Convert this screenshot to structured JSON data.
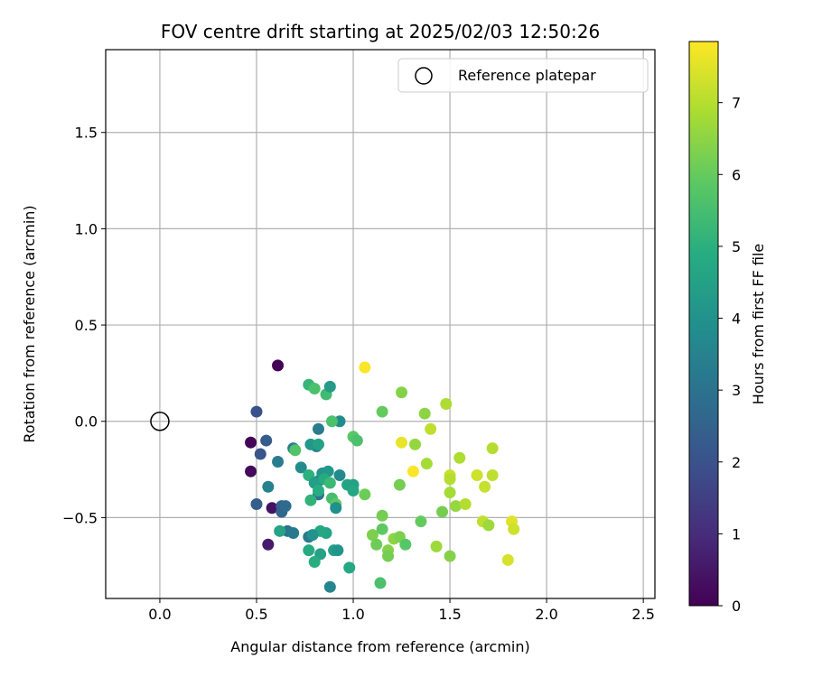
{
  "chart_data": {
    "type": "scatter",
    "title": "FOV centre drift starting at 2025/02/03 12:50:26",
    "xlabel": "Angular distance from reference (arcmin)",
    "ylabel": "Rotation from reference (arcmin)",
    "xlim": [
      -0.28,
      2.56
    ],
    "ylim": [
      -0.92,
      1.93
    ],
    "xticks": [
      0.0,
      0.5,
      1.0,
      1.5,
      2.0,
      2.5
    ],
    "xtick_labels": [
      "0.0",
      "0.5",
      "1.0",
      "1.5",
      "2.0",
      "2.5"
    ],
    "yticks": [
      -0.5,
      0.0,
      0.5,
      1.0,
      1.5
    ],
    "ytick_labels": [
      "−0.5",
      "0.0",
      "0.5",
      "1.0",
      "1.5"
    ],
    "grid": true,
    "legend": {
      "position": "top-right",
      "entries": [
        "Reference platepar"
      ]
    },
    "reference_marker": {
      "x": 0.0,
      "y": 0.0,
      "label": "Reference platepar"
    },
    "colorbar": {
      "label": "Hours from first FF file",
      "colormap": "viridis",
      "range": [
        0,
        7.85
      ],
      "ticks": [
        0,
        1,
        2,
        3,
        4,
        5,
        6,
        7
      ],
      "tick_labels": [
        "0",
        "1",
        "2",
        "3",
        "4",
        "5",
        "6",
        "7"
      ]
    },
    "points": [
      {
        "x": 0.61,
        "y": 0.29,
        "t": 0.05
      },
      {
        "x": 0.47,
        "y": -0.11,
        "t": 0.1
      },
      {
        "x": 0.47,
        "y": -0.26,
        "t": 0.2
      },
      {
        "x": 0.58,
        "y": -0.45,
        "t": 0.4
      },
      {
        "x": 0.56,
        "y": -0.64,
        "t": 0.6
      },
      {
        "x": 0.5,
        "y": 0.05,
        "t": 2.0
      },
      {
        "x": 0.52,
        "y": -0.17,
        "t": 2.1
      },
      {
        "x": 0.55,
        "y": -0.1,
        "t": 2.3
      },
      {
        "x": 0.5,
        "y": -0.43,
        "t": 2.4
      },
      {
        "x": 0.63,
        "y": -0.47,
        "t": 2.6
      },
      {
        "x": 0.63,
        "y": -0.44,
        "t": 2.5
      },
      {
        "x": 0.65,
        "y": -0.44,
        "t": 2.8
      },
      {
        "x": 0.56,
        "y": -0.34,
        "t": 3.5
      },
      {
        "x": 0.61,
        "y": -0.21,
        "t": 3.3
      },
      {
        "x": 0.69,
        "y": -0.14,
        "t": 3.4
      },
      {
        "x": 0.66,
        "y": -0.57,
        "t": 3.0
      },
      {
        "x": 0.69,
        "y": -0.58,
        "t": 3.2
      },
      {
        "x": 0.62,
        "y": -0.57,
        "t": 4.6
      },
      {
        "x": 0.73,
        "y": -0.24,
        "t": 3.8
      },
      {
        "x": 0.77,
        "y": -0.6,
        "t": 3.2
      },
      {
        "x": 0.81,
        "y": -0.13,
        "t": 3.5
      },
      {
        "x": 0.82,
        "y": -0.04,
        "t": 3.3
      },
      {
        "x": 0.82,
        "y": -0.38,
        "t": 3.0
      },
      {
        "x": 0.82,
        "y": -0.31,
        "t": 3.6
      },
      {
        "x": 0.78,
        "y": -0.12,
        "t": 4.2
      },
      {
        "x": 0.82,
        "y": -0.12,
        "t": 4.5
      },
      {
        "x": 0.77,
        "y": 0.19,
        "t": 5.2
      },
      {
        "x": 0.8,
        "y": 0.17,
        "t": 5.6
      },
      {
        "x": 0.86,
        "y": 0.14,
        "t": 5.4
      },
      {
        "x": 0.88,
        "y": 0.18,
        "t": 4.3
      },
      {
        "x": 0.7,
        "y": -0.15,
        "t": 5.7
      },
      {
        "x": 0.77,
        "y": -0.28,
        "t": 5.0
      },
      {
        "x": 0.8,
        "y": -0.32,
        "t": 4.4
      },
      {
        "x": 0.84,
        "y": -0.27,
        "t": 4.1
      },
      {
        "x": 0.87,
        "y": -0.26,
        "t": 4.2
      },
      {
        "x": 0.85,
        "y": -0.3,
        "t": 4.8
      },
      {
        "x": 0.88,
        "y": -0.32,
        "t": 5.3
      },
      {
        "x": 0.82,
        "y": -0.36,
        "t": 4.9
      },
      {
        "x": 0.78,
        "y": -0.41,
        "t": 5.1
      },
      {
        "x": 0.89,
        "y": -0.4,
        "t": 5.5
      },
      {
        "x": 0.91,
        "y": -0.43,
        "t": 5.9
      },
      {
        "x": 0.91,
        "y": -0.45,
        "t": 3.9
      },
      {
        "x": 0.86,
        "y": -0.58,
        "t": 4.6
      },
      {
        "x": 0.83,
        "y": -0.57,
        "t": 4.7
      },
      {
        "x": 0.79,
        "y": -0.59,
        "t": 4.0
      },
      {
        "x": 0.77,
        "y": -0.67,
        "t": 4.8
      },
      {
        "x": 0.83,
        "y": -0.69,
        "t": 4.5
      },
      {
        "x": 0.8,
        "y": -0.73,
        "t": 4.9
      },
      {
        "x": 0.9,
        "y": -0.67,
        "t": 4.4
      },
      {
        "x": 0.92,
        "y": -0.67,
        "t": 4.1
      },
      {
        "x": 0.88,
        "y": -0.86,
        "t": 3.6
      },
      {
        "x": 0.98,
        "y": -0.76,
        "t": 4.7
      },
      {
        "x": 0.93,
        "y": 0.0,
        "t": 3.8
      },
      {
        "x": 0.89,
        "y": 0.0,
        "t": 5.6
      },
      {
        "x": 0.93,
        "y": -0.28,
        "t": 3.7
      },
      {
        "x": 0.97,
        "y": -0.33,
        "t": 4.6
      },
      {
        "x": 1.0,
        "y": -0.33,
        "t": 4.5
      },
      {
        "x": 1.0,
        "y": -0.36,
        "t": 4.7
      },
      {
        "x": 1.0,
        "y": -0.08,
        "t": 5.8
      },
      {
        "x": 1.02,
        "y": -0.1,
        "t": 5.6
      },
      {
        "x": 1.06,
        "y": 0.28,
        "t": 7.8
      },
      {
        "x": 1.06,
        "y": -0.38,
        "t": 6.1
      },
      {
        "x": 1.15,
        "y": 0.05,
        "t": 6.0
      },
      {
        "x": 1.1,
        "y": -0.59,
        "t": 6.3
      },
      {
        "x": 1.12,
        "y": -0.64,
        "t": 6.1
      },
      {
        "x": 1.15,
        "y": -0.56,
        "t": 5.9
      },
      {
        "x": 1.15,
        "y": -0.49,
        "t": 6.2
      },
      {
        "x": 1.18,
        "y": -0.67,
        "t": 6.4
      },
      {
        "x": 1.18,
        "y": -0.7,
        "t": 6.2
      },
      {
        "x": 1.21,
        "y": -0.61,
        "t": 6.5
      },
      {
        "x": 1.24,
        "y": -0.6,
        "t": 6.3
      },
      {
        "x": 1.14,
        "y": -0.84,
        "t": 5.6
      },
      {
        "x": 1.27,
        "y": -0.64,
        "t": 5.8
      },
      {
        "x": 1.24,
        "y": -0.33,
        "t": 6.2
      },
      {
        "x": 1.25,
        "y": 0.15,
        "t": 6.4
      },
      {
        "x": 1.25,
        "y": -0.11,
        "t": 7.6
      },
      {
        "x": 1.31,
        "y": -0.26,
        "t": 7.8
      },
      {
        "x": 1.32,
        "y": -0.12,
        "t": 6.6
      },
      {
        "x": 1.35,
        "y": -0.52,
        "t": 6.0
      },
      {
        "x": 1.37,
        "y": 0.04,
        "t": 6.5
      },
      {
        "x": 1.38,
        "y": -0.22,
        "t": 6.8
      },
      {
        "x": 1.4,
        "y": -0.04,
        "t": 7.1
      },
      {
        "x": 1.43,
        "y": -0.65,
        "t": 6.7
      },
      {
        "x": 1.46,
        "y": -0.47,
        "t": 6.2
      },
      {
        "x": 1.48,
        "y": 0.09,
        "t": 6.9
      },
      {
        "x": 1.5,
        "y": -0.28,
        "t": 7.2
      },
      {
        "x": 1.5,
        "y": -0.3,
        "t": 7.0
      },
      {
        "x": 1.5,
        "y": -0.37,
        "t": 6.8
      },
      {
        "x": 1.5,
        "y": -0.7,
        "t": 6.4
      },
      {
        "x": 1.53,
        "y": -0.44,
        "t": 6.6
      },
      {
        "x": 1.55,
        "y": -0.19,
        "t": 6.9
      },
      {
        "x": 1.58,
        "y": -0.43,
        "t": 7.0
      },
      {
        "x": 1.64,
        "y": -0.28,
        "t": 7.3
      },
      {
        "x": 1.67,
        "y": -0.52,
        "t": 7.1
      },
      {
        "x": 1.68,
        "y": -0.34,
        "t": 7.2
      },
      {
        "x": 1.7,
        "y": -0.54,
        "t": 6.7
      },
      {
        "x": 1.72,
        "y": -0.14,
        "t": 7.0
      },
      {
        "x": 1.72,
        "y": -0.28,
        "t": 7.1
      },
      {
        "x": 1.8,
        "y": -0.72,
        "t": 7.4
      },
      {
        "x": 1.82,
        "y": -0.52,
        "t": 7.5
      },
      {
        "x": 1.83,
        "y": -0.56,
        "t": 7.3
      }
    ]
  }
}
